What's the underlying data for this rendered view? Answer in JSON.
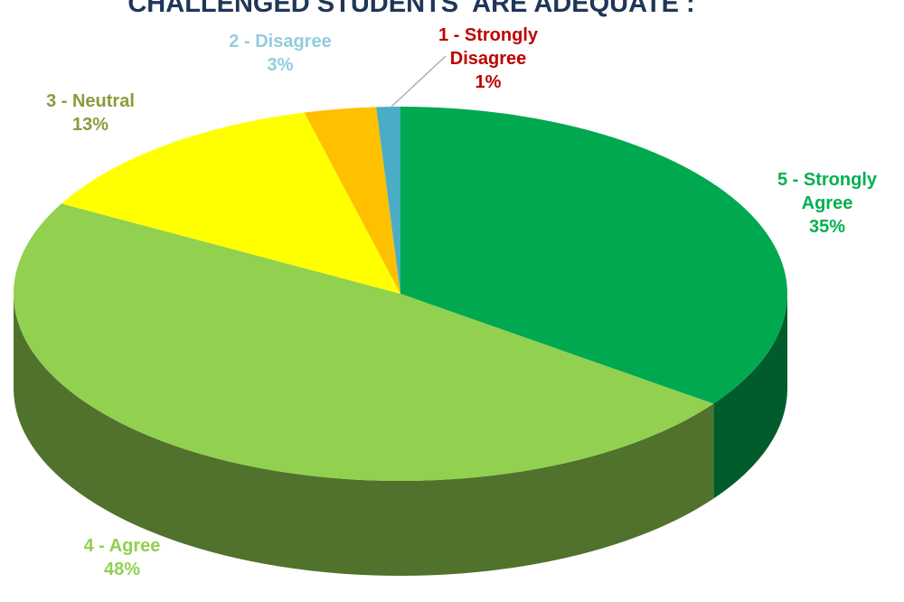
{
  "chart_data": {
    "type": "pie3d",
    "title": "CHALLENGED STUDENTS  ARE ADEQUATE :",
    "categories": [
      "5 - Strongly Agree",
      "4 - Agree",
      "3 - Neutral",
      "2 - Disagree",
      "1 - Strongly Disagree"
    ],
    "values": [
      35,
      48,
      13,
      3,
      1
    ],
    "value_labels": [
      "35%",
      "48%",
      "13%",
      "3%",
      "1%"
    ],
    "colors": [
      "#00a94f",
      "#92d050",
      "#ffff00",
      "#ffc000",
      "#4bacc6"
    ],
    "label_colors": [
      "#00b050",
      "#92d050",
      "#8c9a3c",
      "#92cddc",
      "#c00000"
    ]
  }
}
